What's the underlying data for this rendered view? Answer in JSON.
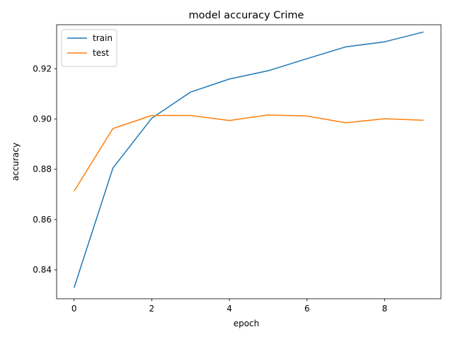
{
  "chart_data": {
    "type": "line",
    "title": "model accuracy Crime",
    "xlabel": "epoch",
    "ylabel": "accuracy",
    "x": [
      0,
      1,
      2,
      3,
      4,
      5,
      6,
      7,
      8,
      9
    ],
    "xlim": [
      -0.45,
      9.45
    ],
    "ylim": [
      0.8285,
      0.9375
    ],
    "xticks": [
      0,
      2,
      4,
      6,
      8
    ],
    "xtick_labels": [
      "0",
      "2",
      "4",
      "6",
      "8"
    ],
    "yticks": [
      0.84,
      0.86,
      0.88,
      0.9,
      0.92
    ],
    "ytick_labels": [
      "0.84",
      "0.86",
      "0.88",
      "0.90",
      "0.92"
    ],
    "grid": false,
    "legend": "top-left",
    "series": [
      {
        "name": "train",
        "color": "#1f77b4",
        "values": [
          0.8329,
          0.8805,
          0.9003,
          0.9107,
          0.9159,
          0.9192,
          0.924,
          0.9287,
          0.9307,
          0.9346
        ]
      },
      {
        "name": "test",
        "color": "#ff7f0e",
        "values": [
          0.8713,
          0.8962,
          0.9014,
          0.9014,
          0.8994,
          0.9016,
          0.9012,
          0.8985,
          0.9001,
          0.8995
        ]
      }
    ]
  }
}
